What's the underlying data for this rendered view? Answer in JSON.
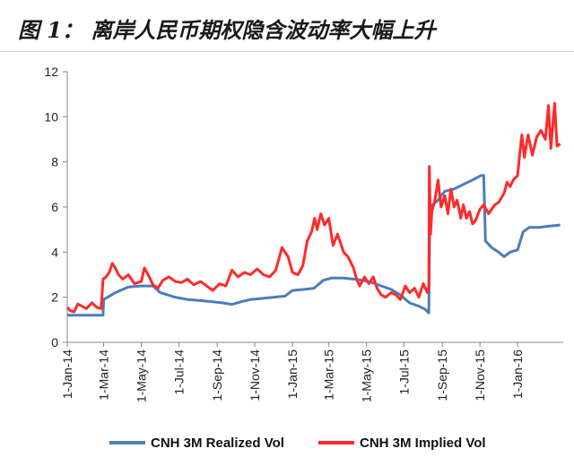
{
  "title": "图 1： 离岸人民币期权隐含波动率大幅上升",
  "chart_data": {
    "type": "line",
    "title": "图 1： 离岸人民币期权隐含波动率大幅上升",
    "xlabel": "",
    "ylabel": "",
    "ylim": [
      0,
      12
    ],
    "yticks": [
      0,
      2,
      4,
      6,
      8,
      10,
      12
    ],
    "xlim": [
      "2014-01-01",
      "2016-03-15"
    ],
    "xticks": [
      {
        "date": "2014-01-01",
        "label": "1-Jan-14"
      },
      {
        "date": "2014-03-01",
        "label": "1-Mar-14"
      },
      {
        "date": "2014-05-01",
        "label": "1-May-14"
      },
      {
        "date": "2014-07-01",
        "label": "1-Jul-14"
      },
      {
        "date": "2014-09-01",
        "label": "1-Sep-14"
      },
      {
        "date": "2014-11-01",
        "label": "1-Nov-14"
      },
      {
        "date": "2015-01-01",
        "label": "1-Jan-15"
      },
      {
        "date": "2015-03-01",
        "label": "1-Mar-15"
      },
      {
        "date": "2015-05-01",
        "label": "1-May-15"
      },
      {
        "date": "2015-07-01",
        "label": "1-Jul-15"
      },
      {
        "date": "2015-09-01",
        "label": "1-Sep-15"
      },
      {
        "date": "2015-11-01",
        "label": "1-Nov-15"
      },
      {
        "date": "2016-01-01",
        "label": "1-Jan-16"
      }
    ],
    "grid": false,
    "legend": "bottom",
    "series": [
      {
        "name": "CNH 3M Realized Vol",
        "color": "#4a7ebb",
        "points": [
          [
            "2014-01-01",
            1.2
          ],
          [
            "2014-02-01",
            1.2
          ],
          [
            "2014-02-28",
            1.2
          ],
          [
            "2014-03-01",
            1.9
          ],
          [
            "2014-03-20",
            2.2
          ],
          [
            "2014-04-10",
            2.45
          ],
          [
            "2014-05-01",
            2.5
          ],
          [
            "2014-05-20",
            2.5
          ],
          [
            "2014-06-01",
            2.2
          ],
          [
            "2014-06-25",
            2.0
          ],
          [
            "2014-07-15",
            1.9
          ],
          [
            "2014-08-05",
            1.85
          ],
          [
            "2014-08-25",
            1.8
          ],
          [
            "2014-09-10",
            1.75
          ],
          [
            "2014-09-25",
            1.68
          ],
          [
            "2014-10-10",
            1.8
          ],
          [
            "2014-10-25",
            1.9
          ],
          [
            "2014-11-15",
            1.95
          ],
          [
            "2014-12-01",
            2.0
          ],
          [
            "2014-12-20",
            2.05
          ],
          [
            "2015-01-01",
            2.3
          ],
          [
            "2015-01-20",
            2.35
          ],
          [
            "2015-02-05",
            2.4
          ],
          [
            "2015-02-20",
            2.75
          ],
          [
            "2015-03-05",
            2.85
          ],
          [
            "2015-03-25",
            2.85
          ],
          [
            "2015-04-10",
            2.8
          ],
          [
            "2015-04-25",
            2.75
          ],
          [
            "2015-05-10",
            2.65
          ],
          [
            "2015-05-25",
            2.5
          ],
          [
            "2015-06-10",
            2.35
          ],
          [
            "2015-06-25",
            2.1
          ],
          [
            "2015-07-10",
            1.75
          ],
          [
            "2015-07-25",
            1.6
          ],
          [
            "2015-08-05",
            1.45
          ],
          [
            "2015-08-10",
            1.3
          ],
          [
            "2015-08-12",
            6.0
          ],
          [
            "2015-08-25",
            6.3
          ],
          [
            "2015-09-05",
            6.7
          ],
          [
            "2015-09-20",
            6.8
          ],
          [
            "2015-10-05",
            7.0
          ],
          [
            "2015-10-20",
            7.2
          ],
          [
            "2015-11-03",
            7.4
          ],
          [
            "2015-11-07",
            7.4
          ],
          [
            "2015-11-10",
            4.5
          ],
          [
            "2015-11-20",
            4.2
          ],
          [
            "2015-12-01",
            4.0
          ],
          [
            "2015-12-10",
            3.8
          ],
          [
            "2015-12-20",
            4.0
          ],
          [
            "2016-01-01",
            4.1
          ],
          [
            "2016-01-10",
            4.9
          ],
          [
            "2016-01-20",
            5.1
          ],
          [
            "2016-02-05",
            5.1
          ],
          [
            "2016-02-20",
            5.15
          ],
          [
            "2016-03-10",
            5.2
          ]
        ]
      },
      {
        "name": "CNH 3M Implied Vol",
        "color": "#ff2a2a",
        "points": [
          [
            "2014-01-01",
            1.55
          ],
          [
            "2014-01-06",
            1.4
          ],
          [
            "2014-01-12",
            1.35
          ],
          [
            "2014-01-18",
            1.7
          ],
          [
            "2014-01-25",
            1.6
          ],
          [
            "2014-02-01",
            1.5
          ],
          [
            "2014-02-10",
            1.75
          ],
          [
            "2014-02-18",
            1.55
          ],
          [
            "2014-02-25",
            1.5
          ],
          [
            "2014-02-28",
            2.8
          ],
          [
            "2014-03-05",
            2.9
          ],
          [
            "2014-03-10",
            3.1
          ],
          [
            "2014-03-15",
            3.5
          ],
          [
            "2014-03-20",
            3.3
          ],
          [
            "2014-03-25",
            3.0
          ],
          [
            "2014-04-01",
            2.8
          ],
          [
            "2014-04-10",
            3.0
          ],
          [
            "2014-04-20",
            2.6
          ],
          [
            "2014-05-01",
            2.7
          ],
          [
            "2014-05-06",
            3.3
          ],
          [
            "2014-05-12",
            3.0
          ],
          [
            "2014-05-20",
            2.55
          ],
          [
            "2014-05-28",
            2.4
          ],
          [
            "2014-06-05",
            2.75
          ],
          [
            "2014-06-15",
            2.9
          ],
          [
            "2014-06-25",
            2.7
          ],
          [
            "2014-07-05",
            2.65
          ],
          [
            "2014-07-15",
            2.8
          ],
          [
            "2014-07-25",
            2.55
          ],
          [
            "2014-08-05",
            2.7
          ],
          [
            "2014-08-15",
            2.5
          ],
          [
            "2014-08-25",
            2.3
          ],
          [
            "2014-09-05",
            2.6
          ],
          [
            "2014-09-15",
            2.5
          ],
          [
            "2014-09-25",
            3.2
          ],
          [
            "2014-10-05",
            2.9
          ],
          [
            "2014-10-15",
            3.1
          ],
          [
            "2014-10-25",
            3.0
          ],
          [
            "2014-11-05",
            3.25
          ],
          [
            "2014-11-15",
            3.0
          ],
          [
            "2014-11-25",
            2.9
          ],
          [
            "2014-12-05",
            3.2
          ],
          [
            "2014-12-15",
            4.2
          ],
          [
            "2014-12-25",
            3.8
          ],
          [
            "2015-01-01",
            3.1
          ],
          [
            "2015-01-10",
            3.0
          ],
          [
            "2015-01-18",
            3.4
          ],
          [
            "2015-01-25",
            4.5
          ],
          [
            "2015-02-01",
            4.9
          ],
          [
            "2015-02-06",
            5.5
          ],
          [
            "2015-02-10",
            5.0
          ],
          [
            "2015-02-16",
            5.7
          ],
          [
            "2015-02-22",
            5.2
          ],
          [
            "2015-03-01",
            5.5
          ],
          [
            "2015-03-08",
            4.3
          ],
          [
            "2015-03-15",
            4.8
          ],
          [
            "2015-03-25",
            4.0
          ],
          [
            "2015-04-01",
            3.8
          ],
          [
            "2015-04-10",
            3.3
          ],
          [
            "2015-04-15",
            2.8
          ],
          [
            "2015-04-20",
            2.5
          ],
          [
            "2015-04-28",
            2.9
          ],
          [
            "2015-05-05",
            2.6
          ],
          [
            "2015-05-12",
            2.9
          ],
          [
            "2015-05-18",
            2.4
          ],
          [
            "2015-05-25",
            2.1
          ],
          [
            "2015-06-01",
            2.0
          ],
          [
            "2015-06-10",
            2.2
          ],
          [
            "2015-06-18",
            2.1
          ],
          [
            "2015-06-25",
            1.9
          ],
          [
            "2015-07-03",
            2.5
          ],
          [
            "2015-07-10",
            2.2
          ],
          [
            "2015-07-18",
            2.4
          ],
          [
            "2015-07-25",
            2.0
          ],
          [
            "2015-08-01",
            2.6
          ],
          [
            "2015-08-08",
            2.2
          ],
          [
            "2015-08-10",
            2.5
          ],
          [
            "2015-08-11",
            7.8
          ],
          [
            "2015-08-13",
            4.8
          ],
          [
            "2015-08-15",
            5.8
          ],
          [
            "2015-08-20",
            6.3
          ],
          [
            "2015-08-25",
            7.2
          ],
          [
            "2015-08-30",
            6.0
          ],
          [
            "2015-09-05",
            6.5
          ],
          [
            "2015-09-10",
            5.7
          ],
          [
            "2015-09-15",
            6.8
          ],
          [
            "2015-09-20",
            6.0
          ],
          [
            "2015-09-25",
            6.3
          ],
          [
            "2015-10-01",
            5.5
          ],
          [
            "2015-10-05",
            6.1
          ],
          [
            "2015-10-10",
            5.5
          ],
          [
            "2015-10-15",
            5.8
          ],
          [
            "2015-10-20",
            5.25
          ],
          [
            "2015-10-25",
            5.4
          ],
          [
            "2015-11-01",
            5.9
          ],
          [
            "2015-11-07",
            6.1
          ],
          [
            "2015-11-15",
            5.7
          ],
          [
            "2015-11-25",
            6.1
          ],
          [
            "2015-12-01",
            6.2
          ],
          [
            "2015-12-10",
            6.6
          ],
          [
            "2015-12-15",
            7.1
          ],
          [
            "2015-12-20",
            6.9
          ],
          [
            "2015-12-25",
            7.2
          ],
          [
            "2016-01-01",
            7.4
          ],
          [
            "2016-01-05",
            8.5
          ],
          [
            "2016-01-08",
            9.2
          ],
          [
            "2016-01-12",
            8.2
          ],
          [
            "2016-01-18",
            9.2
          ],
          [
            "2016-01-25",
            8.3
          ],
          [
            "2016-02-01",
            9.1
          ],
          [
            "2016-02-08",
            9.4
          ],
          [
            "2016-02-15",
            9.0
          ],
          [
            "2016-02-20",
            10.5
          ],
          [
            "2016-02-24",
            8.6
          ],
          [
            "2016-03-01",
            10.6
          ],
          [
            "2016-03-05",
            8.7
          ],
          [
            "2016-03-10",
            8.8
          ]
        ]
      }
    ]
  }
}
